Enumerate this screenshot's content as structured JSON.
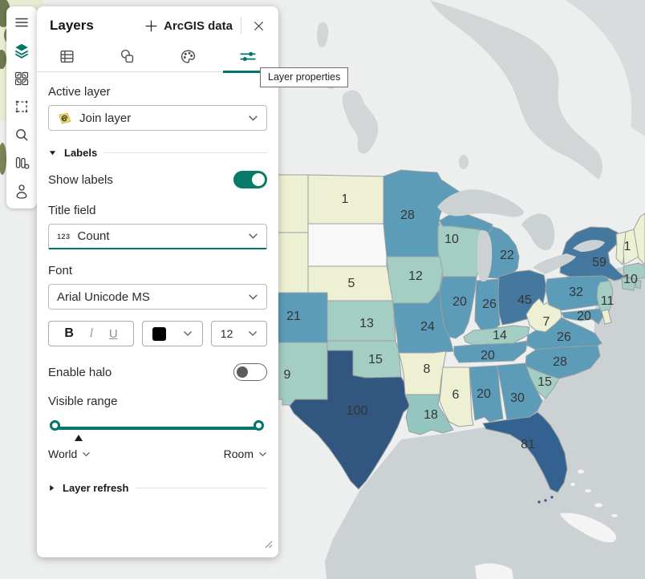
{
  "accent_color": "#00756b",
  "toolbar": {
    "icons": [
      "menu",
      "layers",
      "basemap-grid",
      "select-marquee",
      "search",
      "charts",
      "profile"
    ]
  },
  "panel": {
    "title": "Layers",
    "header": {
      "add_button_label": "ArcGIS data"
    },
    "tabs": [
      {
        "icon": "table",
        "active": false
      },
      {
        "icon": "shapes",
        "active": false
      },
      {
        "icon": "palette",
        "active": false
      },
      {
        "icon": "layer-properties",
        "active": true
      }
    ],
    "tooltip": "Layer properties",
    "active_layer": {
      "label": "Active layer",
      "value": "Join layer"
    },
    "labels_section": {
      "title": "Labels",
      "show_labels": {
        "label": "Show labels",
        "on": true
      },
      "title_field": {
        "label": "Title field",
        "value": "Count",
        "icon_text": "123"
      },
      "font": {
        "label": "Font",
        "value": "Arial Unicode MS"
      },
      "format": {
        "bold": "B",
        "italic": "I",
        "underline": "U",
        "color": "#000000",
        "size": "12"
      },
      "enable_halo": {
        "label": "Enable halo",
        "on": false
      },
      "visible_range": {
        "label": "Visible range",
        "min_label": "World",
        "max_label": "Room"
      }
    },
    "layer_refresh": {
      "title": "Layer refresh"
    }
  },
  "map": {
    "background": "#ecefee",
    "water_color": "#ccd1d3",
    "canada_water_color": "#d2d6d7",
    "island_color": "#f3f4f3",
    "label_color": "#353535",
    "states": [
      {
        "id": "MT",
        "value": null,
        "color": "#eef0d3"
      },
      {
        "id": "WY",
        "value": null,
        "color": "#eef0d3"
      },
      {
        "id": "ND",
        "value": 1,
        "color": "#eef0d3"
      },
      {
        "id": "SD",
        "value": null,
        "color": "#f7f8f7"
      },
      {
        "id": "NE",
        "value": 5,
        "color": "#eef0d3"
      },
      {
        "id": "CO",
        "value": 21,
        "color": "#5d9cb9"
      },
      {
        "id": "NM",
        "value": 9,
        "color": "#a4cdc4"
      },
      {
        "id": "KS",
        "value": 13,
        "color": "#a4cdc4"
      },
      {
        "id": "OK",
        "value": 15,
        "color": "#a4cdc4"
      },
      {
        "id": "TX",
        "value": 100,
        "color": "#315680"
      },
      {
        "id": "MN",
        "value": 28,
        "color": "#5d9cb9"
      },
      {
        "id": "IA",
        "value": 12,
        "color": "#a4cdc4"
      },
      {
        "id": "MO",
        "value": 24,
        "color": "#5d9cb9"
      },
      {
        "id": "AR",
        "value": 8,
        "color": "#eef0d3"
      },
      {
        "id": "LA",
        "value": 18,
        "color": "#94c5bf"
      },
      {
        "id": "WI",
        "value": 10,
        "color": "#a4cdc4"
      },
      {
        "id": "IL",
        "value": 20,
        "color": "#5d9cb9"
      },
      {
        "id": "IN",
        "value": 26,
        "color": "#5d9cb9"
      },
      {
        "id": "MI",
        "value": 22,
        "color": "#5d9cb9"
      },
      {
        "id": "OH",
        "value": 45,
        "color": "#44789f"
      },
      {
        "id": "KY",
        "value": 14,
        "color": "#a4cdc4"
      },
      {
        "id": "TN",
        "value": 20,
        "color": "#5d9cb9"
      },
      {
        "id": "MS",
        "value": 6,
        "color": "#eef0d3"
      },
      {
        "id": "AL",
        "value": 20,
        "color": "#5d9cb9"
      },
      {
        "id": "GA",
        "value": 30,
        "color": "#5d9cb9"
      },
      {
        "id": "FL",
        "value": 81,
        "color": "#336190"
      },
      {
        "id": "SC",
        "value": 15,
        "color": "#a4cdc4"
      },
      {
        "id": "NC",
        "value": 28,
        "color": "#5d9cb9"
      },
      {
        "id": "VA",
        "value": 26,
        "color": "#5d9cb9"
      },
      {
        "id": "WV",
        "value": 7,
        "color": "#eef0d3"
      },
      {
        "id": "MD",
        "value": 20,
        "color": "#5d9cb9"
      },
      {
        "id": "DE",
        "value": null,
        "color": "#eef0d3"
      },
      {
        "id": "PA",
        "value": 32,
        "color": "#5d9cb9"
      },
      {
        "id": "NJ",
        "value": 11,
        "color": "#a4cdc4"
      },
      {
        "id": "NY",
        "value": 59,
        "color": "#44789f"
      },
      {
        "id": "VT",
        "value": 1,
        "color": "#eef0d3"
      },
      {
        "id": "NH",
        "value": null,
        "color": "#eef0d3"
      },
      {
        "id": "ME",
        "value": null,
        "color": "#eef0d3"
      },
      {
        "id": "MA",
        "value": 10,
        "color": "#a4cdc4"
      },
      {
        "id": "CT",
        "value": null,
        "color": "#a4cdc4"
      },
      {
        "id": "RI",
        "value": null,
        "color": "#a4cdc4"
      }
    ]
  }
}
